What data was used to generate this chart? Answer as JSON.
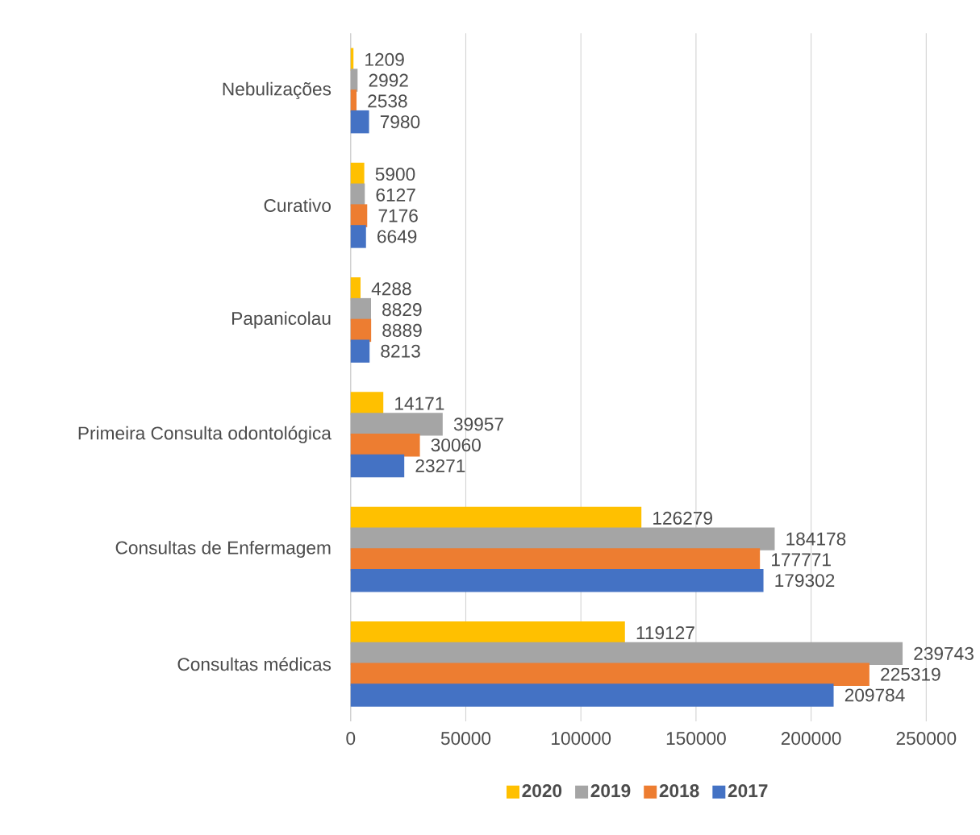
{
  "chart_data": {
    "type": "bar",
    "orientation": "horizontal",
    "categories": [
      "Nebulizações",
      "Curativo",
      "Papanicolau",
      "Primeira Consulta odontológica",
      "Consultas de Enfermagem",
      "Consultas médicas"
    ],
    "series": [
      {
        "name": "2020",
        "color": "#ffc000",
        "values": [
          1209,
          5900,
          4288,
          14171,
          126279,
          119127
        ]
      },
      {
        "name": "2019",
        "color": "#a5a5a5",
        "values": [
          2992,
          6127,
          8829,
          39957,
          184178,
          239743
        ]
      },
      {
        "name": "2018",
        "color": "#ed7d31",
        "values": [
          2538,
          7176,
          8889,
          30060,
          177771,
          225319
        ]
      },
      {
        "name": "2017",
        "color": "#4472c4",
        "values": [
          7980,
          6649,
          8213,
          23271,
          179302,
          209784
        ]
      }
    ],
    "xlim": [
      0,
      250000
    ],
    "xticks": [
      0,
      50000,
      100000,
      150000,
      200000,
      250000
    ],
    "grid": "x",
    "legend": "bottom",
    "data_labels": true
  }
}
